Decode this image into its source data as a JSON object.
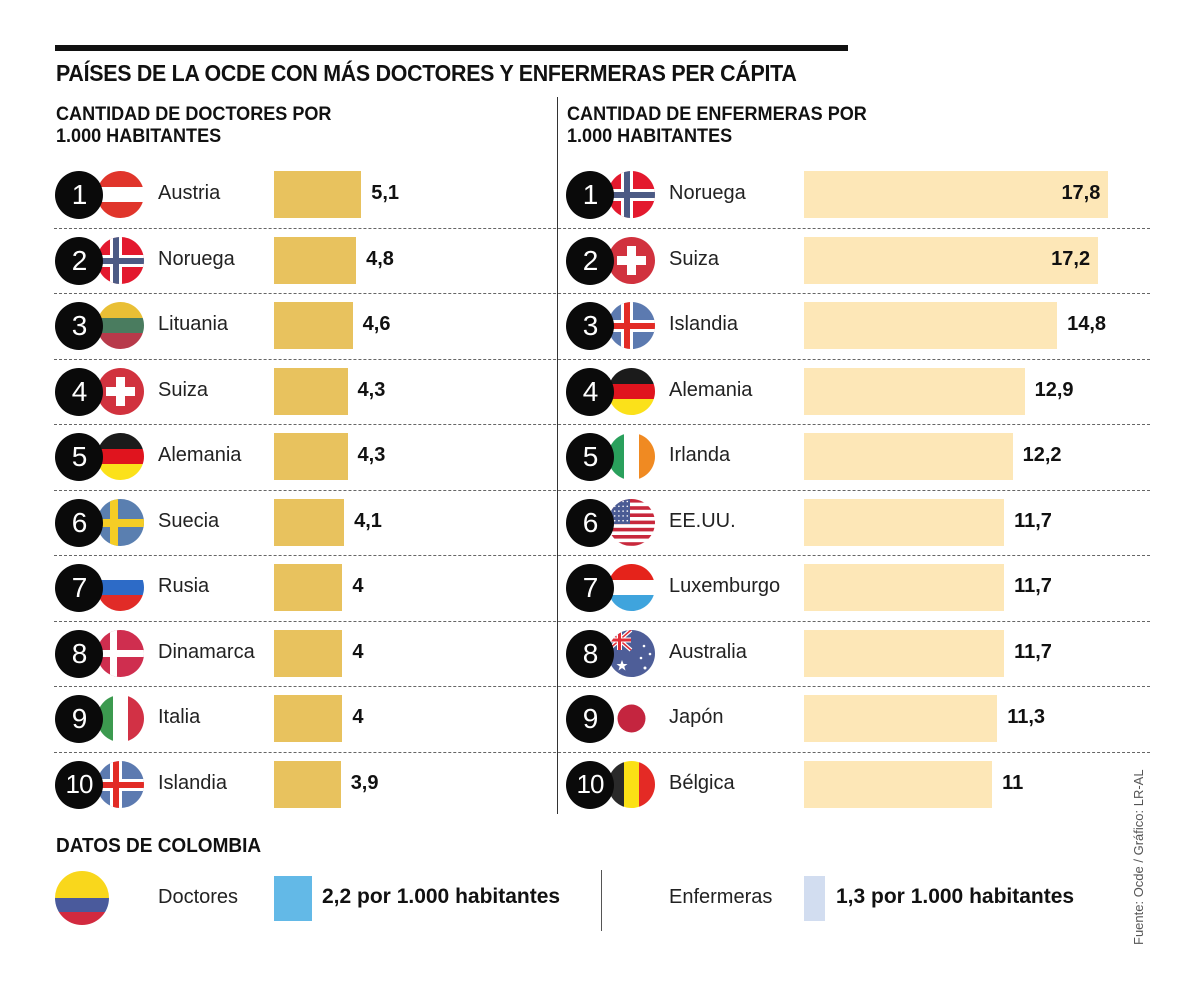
{
  "title": "PAÍSES DE LA OCDE CON MÁS DOCTORES Y ENFERMERAS PER CÁPITA",
  "doctors": {
    "heading_line1": "CANTIDAD DE DOCTORES POR",
    "heading_line2": "1.000 HABITANTES"
  },
  "nurses": {
    "heading_line1": "CANTIDAD DE ENFERMERAS POR",
    "heading_line2": "1.000 HABITANTES"
  },
  "colors": {
    "doctors_bar": "#e8c25e",
    "nurses_bar": "#fde7b7",
    "colombia_doctors": "#63b9e7",
    "colombia_nurses": "#d2ddf0"
  },
  "chart_data": [
    {
      "type": "bar",
      "orientation": "horizontal",
      "title": "CANTIDAD DE DOCTORES POR 1.000 HABITANTES",
      "categories": [
        "Austria",
        "Noruega",
        "Lituania",
        "Suiza",
        "Alemania",
        "Suecia",
        "Rusia",
        "Dinamarca",
        "Italia",
        "Islandia"
      ],
      "ranks": [
        "1",
        "2",
        "3",
        "4",
        "5",
        "6",
        "7",
        "8",
        "9",
        "10"
      ],
      "flags": [
        "austria",
        "norway",
        "lithuania",
        "switzerland",
        "germany",
        "sweden",
        "russia",
        "denmark",
        "italy",
        "iceland"
      ],
      "values": [
        5.1,
        4.8,
        4.6,
        4.3,
        4.3,
        4.1,
        4,
        4,
        4,
        3.9
      ],
      "labels": [
        "5,1",
        "4,8",
        "4,6",
        "4,3",
        "4,3",
        "4,1",
        "4",
        "4",
        "4",
        "3,9"
      ],
      "xlim": [
        0,
        18
      ]
    },
    {
      "type": "bar",
      "orientation": "horizontal",
      "title": "CANTIDAD DE ENFERMERAS POR 1.000 HABITANTES",
      "categories": [
        "Noruega",
        "Suiza",
        "Islandia",
        "Alemania",
        "Irlanda",
        "EE.UU.",
        "Luxemburgo",
        "Australia",
        "Japón",
        "Bélgica"
      ],
      "ranks": [
        "1",
        "2",
        "3",
        "4",
        "5",
        "6",
        "7",
        "8",
        "9",
        "10"
      ],
      "flags": [
        "norway",
        "switzerland",
        "iceland",
        "germany",
        "ireland",
        "usa",
        "luxembourg",
        "australia",
        "japan",
        "belgium"
      ],
      "values": [
        17.8,
        17.2,
        14.8,
        12.9,
        12.2,
        11.7,
        11.7,
        11.7,
        11.3,
        11
      ],
      "labels": [
        "17,8",
        "17,2",
        "14,8",
        "12,9",
        "12,2",
        "11,7",
        "11,7",
        "11,7",
        "11,3",
        "11"
      ],
      "label_inside_first_n": 2,
      "xlim": [
        0,
        18
      ]
    }
  ],
  "colombia": {
    "heading": "DATOS DE COLOMBIA",
    "flag": "colombia",
    "doctors_label": "Doctores",
    "doctors_value": "2,2 por 1.000 habitantes",
    "doctors_number": 2.2,
    "nurses_label": "Enfermeras",
    "nurses_value": "1,3 por 1.000 habitantes",
    "nurses_number": 1.3
  },
  "source": "Fuente: Ocde / Gráfico: LR-AL"
}
